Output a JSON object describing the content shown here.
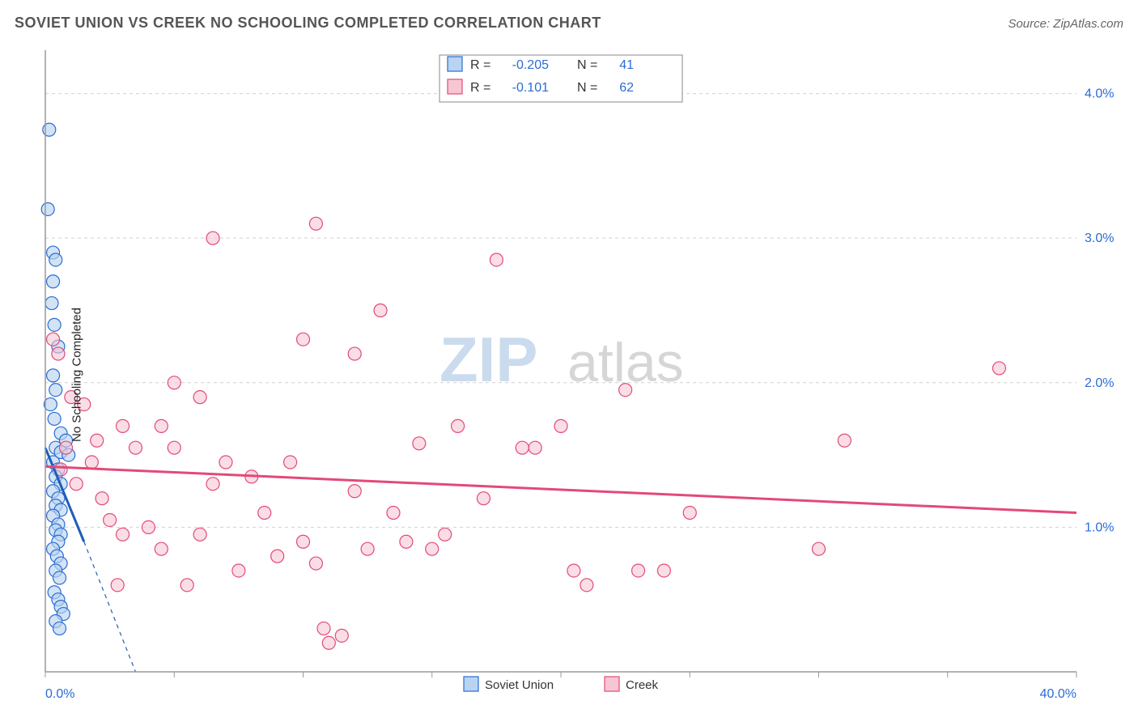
{
  "title": "SOVIET UNION VS CREEK NO SCHOOLING COMPLETED CORRELATION CHART",
  "source": "Source: ZipAtlas.com",
  "ylabel": "No Schooling Completed",
  "watermark": {
    "zip": "ZIP",
    "atlas": "atlas"
  },
  "chart": {
    "type": "scatter",
    "background_color": "#ffffff",
    "grid_color": "#d0d0d0",
    "axis_color": "#999999",
    "tick_label_color": "#2b6cd4",
    "xlim": [
      0,
      40
    ],
    "ylim": [
      0,
      4.3
    ],
    "x_ticks": [
      0,
      5,
      10,
      15,
      20,
      25,
      30,
      35,
      40
    ],
    "x_tick_labels": {
      "0": "0.0%",
      "40": "40.0%"
    },
    "y_gridlines": [
      1,
      2,
      3,
      4
    ],
    "y_tick_labels": {
      "1": "1.0%",
      "2": "2.0%",
      "3": "3.0%",
      "4": "4.0%"
    },
    "marker_radius": 8,
    "marker_stroke_width": 1.2,
    "trend_line_width": 3,
    "dashed_line_width": 1.2,
    "stats_box": {
      "rows": [
        {
          "swatch_fill": "#b8d4f0",
          "swatch_stroke": "#2b6cd4",
          "r_label": "R =",
          "r": "-0.205",
          "n_label": "N =",
          "n": "41"
        },
        {
          "swatch_fill": "#f6c7d3",
          "swatch_stroke": "#e24a78",
          "r_label": "R =",
          "r": "-0.101",
          "n_label": "N =",
          "n": "62"
        }
      ]
    },
    "bottom_legend": [
      {
        "swatch_fill": "#b8d4f0",
        "swatch_stroke": "#2b6cd4",
        "label": "Soviet Union"
      },
      {
        "swatch_fill": "#f6c7d3",
        "swatch_stroke": "#e24a78",
        "label": "Creek"
      }
    ],
    "series": [
      {
        "name": "Soviet Union",
        "marker_fill": "#b8d4f0",
        "marker_stroke": "#2b6cd4",
        "marker_opacity": 0.65,
        "trend_color": "#1e5db8",
        "trend": {
          "x1": 0,
          "y1": 1.55,
          "x2": 1.5,
          "y2": 0.9
        },
        "trend_dashed": {
          "x1": 1.5,
          "y1": 0.9,
          "x2": 3.5,
          "y2": 0.0
        },
        "points": [
          [
            0.15,
            3.75
          ],
          [
            0.1,
            3.2
          ],
          [
            0.3,
            2.9
          ],
          [
            0.4,
            2.85
          ],
          [
            0.3,
            2.7
          ],
          [
            0.25,
            2.55
          ],
          [
            0.35,
            2.4
          ],
          [
            0.5,
            2.25
          ],
          [
            0.3,
            2.05
          ],
          [
            0.4,
            1.95
          ],
          [
            0.2,
            1.85
          ],
          [
            0.35,
            1.75
          ],
          [
            0.6,
            1.65
          ],
          [
            0.8,
            1.6
          ],
          [
            0.4,
            1.55
          ],
          [
            0.6,
            1.52
          ],
          [
            0.9,
            1.5
          ],
          [
            0.3,
            1.45
          ],
          [
            0.5,
            1.4
          ],
          [
            0.4,
            1.35
          ],
          [
            0.6,
            1.3
          ],
          [
            0.3,
            1.25
          ],
          [
            0.5,
            1.2
          ],
          [
            0.4,
            1.15
          ],
          [
            0.6,
            1.12
          ],
          [
            0.3,
            1.08
          ],
          [
            0.5,
            1.02
          ],
          [
            0.4,
            0.98
          ],
          [
            0.6,
            0.95
          ],
          [
            0.5,
            0.9
          ],
          [
            0.3,
            0.85
          ],
          [
            0.45,
            0.8
          ],
          [
            0.6,
            0.75
          ],
          [
            0.4,
            0.7
          ],
          [
            0.55,
            0.65
          ],
          [
            0.35,
            0.55
          ],
          [
            0.5,
            0.5
          ],
          [
            0.6,
            0.45
          ],
          [
            0.7,
            0.4
          ],
          [
            0.4,
            0.35
          ],
          [
            0.55,
            0.3
          ]
        ]
      },
      {
        "name": "Creek",
        "marker_fill": "#f6c7d3",
        "marker_stroke": "#e24a78",
        "marker_opacity": 0.6,
        "trend_color": "#e24a78",
        "trend": {
          "x1": 0,
          "y1": 1.42,
          "x2": 40,
          "y2": 1.1
        },
        "points": [
          [
            0.3,
            2.3
          ],
          [
            0.5,
            2.2
          ],
          [
            10.5,
            3.1
          ],
          [
            6.5,
            3.0
          ],
          [
            17.5,
            2.85
          ],
          [
            13.0,
            2.5
          ],
          [
            10.0,
            2.3
          ],
          [
            12.0,
            2.2
          ],
          [
            37.0,
            2.1
          ],
          [
            22.5,
            1.95
          ],
          [
            20.0,
            1.7
          ],
          [
            16.0,
            1.7
          ],
          [
            19.0,
            1.55
          ],
          [
            14.5,
            1.58
          ],
          [
            1.0,
            1.9
          ],
          [
            1.5,
            1.85
          ],
          [
            2.0,
            1.6
          ],
          [
            3.0,
            1.7
          ],
          [
            3.5,
            1.55
          ],
          [
            5.0,
            2.0
          ],
          [
            6.0,
            1.9
          ],
          [
            7.0,
            1.45
          ],
          [
            8.0,
            1.35
          ],
          [
            8.5,
            1.1
          ],
          [
            9.0,
            0.8
          ],
          [
            10.0,
            0.9
          ],
          [
            10.5,
            0.75
          ],
          [
            11.0,
            0.2
          ],
          [
            12.0,
            1.25
          ],
          [
            12.5,
            0.85
          ],
          [
            13.5,
            1.1
          ],
          [
            14.0,
            0.9
          ],
          [
            15.0,
            0.85
          ],
          [
            15.5,
            0.95
          ],
          [
            17.0,
            1.2
          ],
          [
            18.5,
            1.55
          ],
          [
            20.5,
            0.7
          ],
          [
            21.0,
            0.6
          ],
          [
            23.0,
            0.7
          ],
          [
            24.0,
            0.7
          ],
          [
            25.0,
            1.1
          ],
          [
            30.0,
            0.85
          ],
          [
            31.0,
            1.6
          ],
          [
            2.5,
            1.05
          ],
          [
            3.0,
            0.95
          ],
          [
            4.0,
            1.0
          ],
          [
            4.5,
            0.85
          ],
          [
            5.5,
            0.6
          ],
          [
            6.5,
            1.3
          ],
          [
            1.2,
            1.3
          ],
          [
            1.8,
            1.45
          ],
          [
            2.2,
            1.2
          ],
          [
            0.8,
            1.55
          ],
          [
            0.6,
            1.4
          ],
          [
            5.0,
            1.55
          ],
          [
            4.5,
            1.7
          ],
          [
            6.0,
            0.95
          ],
          [
            7.5,
            0.7
          ],
          [
            2.8,
            0.6
          ],
          [
            9.5,
            1.45
          ],
          [
            11.5,
            0.25
          ],
          [
            10.8,
            0.3
          ]
        ]
      }
    ]
  }
}
